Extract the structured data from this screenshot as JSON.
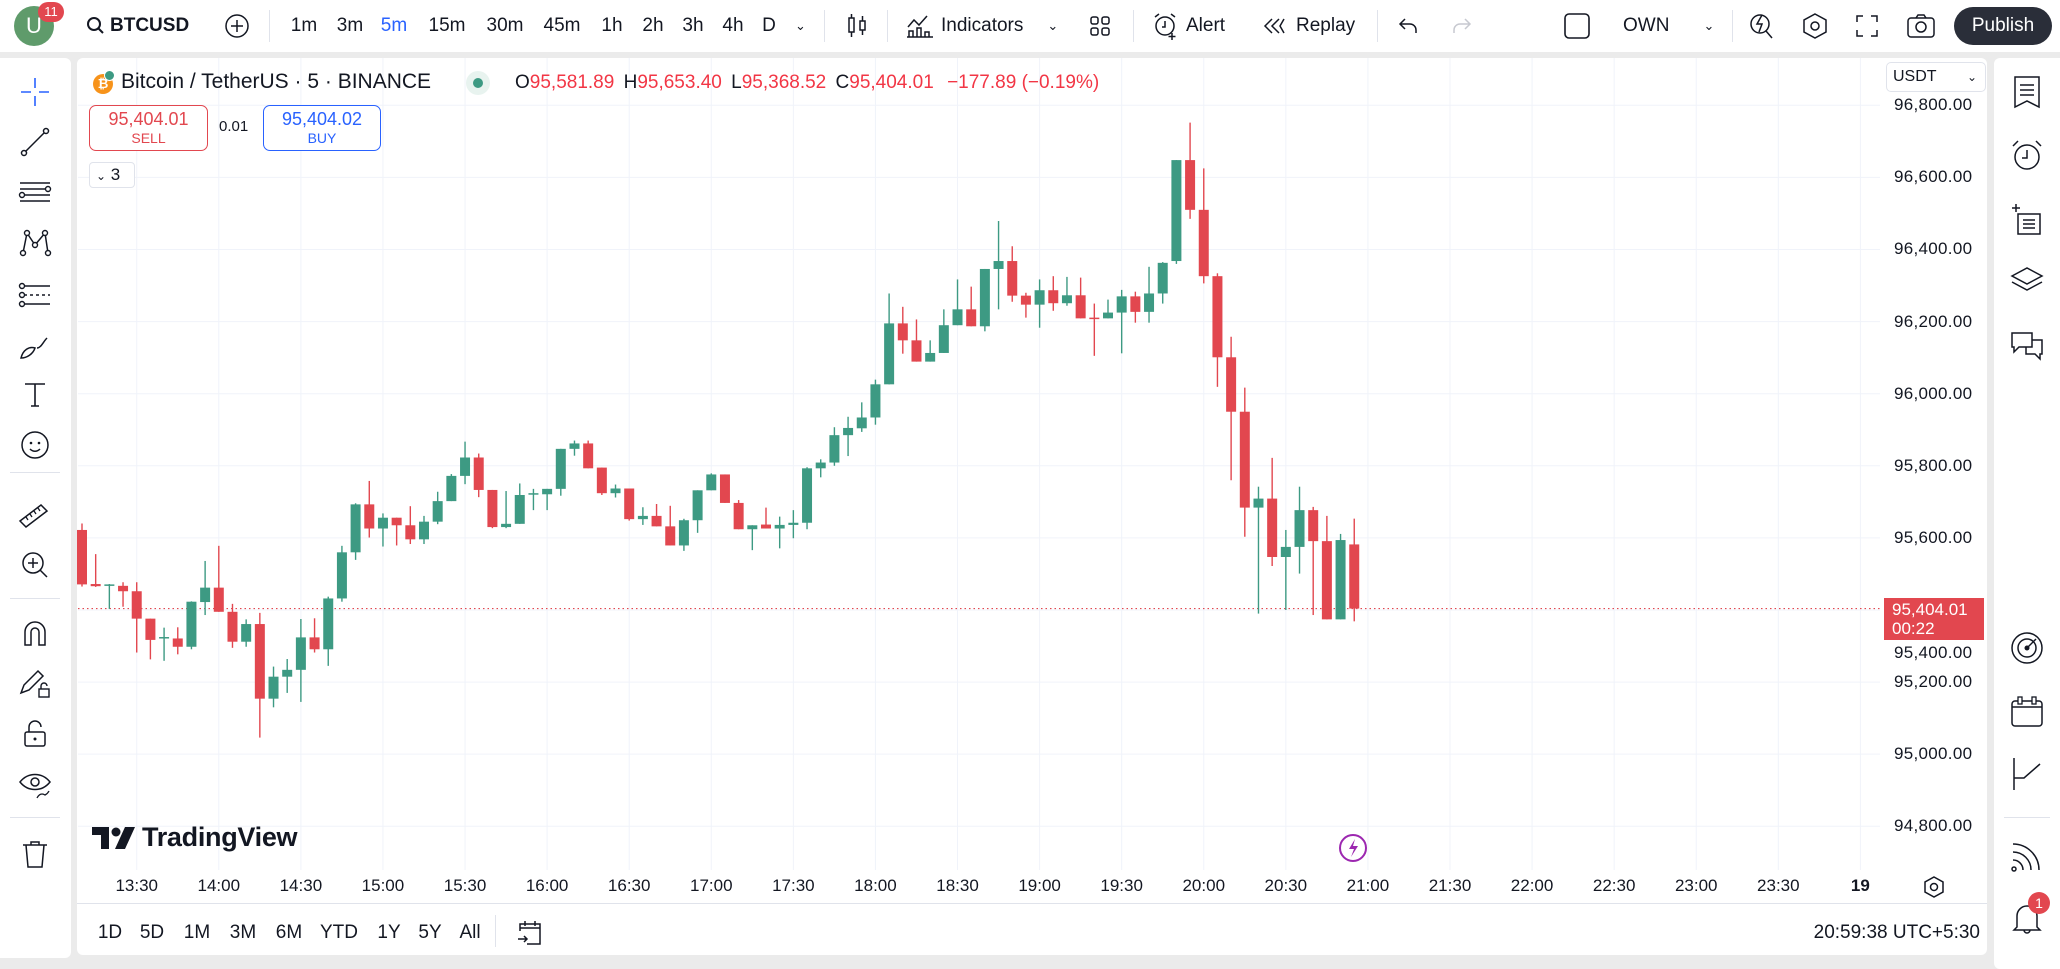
{
  "topbar": {
    "avatar_badge": "11",
    "symbol": "BTCUSD",
    "intervals": [
      "1m",
      "3m",
      "5m",
      "15m",
      "30m",
      "45m",
      "1h",
      "2h",
      "3h",
      "4h",
      "D"
    ],
    "active_interval": "5m",
    "indicators_label": "Indicators",
    "alert_label": "Alert",
    "replay_label": "Replay",
    "layout_label": "OWN",
    "publish_label": "Publish"
  },
  "legend": {
    "title": "Bitcoin / TetherUS · 5 · BINANCE",
    "o_label": "O",
    "o": "95,581.89",
    "h_label": "H",
    "h": "95,653.40",
    "l_label": "L",
    "l": "95,368.52",
    "c_label": "C",
    "c": "95,404.01",
    "change": "−177.89 (−0.19%)",
    "sell_price": "95,404.01",
    "sell_label": "SELL",
    "spread": "0.01",
    "buy_price": "95,404.02",
    "buy_label": "BUY",
    "collapse_count": "3"
  },
  "currency": "USDT",
  "last_price": {
    "value": "95,404.01",
    "countdown": "00:22"
  },
  "watermark": "TradingView",
  "bottombar": {
    "ranges": [
      "1D",
      "5D",
      "1M",
      "3M",
      "6M",
      "YTD",
      "1Y",
      "5Y",
      "All"
    ],
    "clock": "20:59:38 UTC+5:30"
  },
  "right_sidebar": {
    "notification_badge": "1"
  },
  "colors": {
    "up": "#3d9a83",
    "down": "#e2474f",
    "accent": "#2962ff",
    "event": "#9c27b0"
  },
  "chart_data": {
    "type": "candlestick",
    "interval": "5",
    "ylim": [
      94720,
      96860
    ],
    "yticks": [
      "96,800.00",
      "96,600.00",
      "96,400.00",
      "96,200.00",
      "96,000.00",
      "95,800.00",
      "95,600.00",
      "95,400.00",
      "95,200.00",
      "95,000.00",
      "94,800.00"
    ],
    "ytick_values": [
      96800,
      96600,
      96400,
      96200,
      96000,
      95800,
      95600,
      95400,
      95200,
      95000,
      94800
    ],
    "xticks": [
      "13:30",
      "14:00",
      "14:30",
      "15:00",
      "15:30",
      "16:00",
      "16:30",
      "17:00",
      "17:30",
      "18:00",
      "18:30",
      "19:00",
      "19:30",
      "20:00",
      "20:30",
      "21:00",
      "21:30",
      "22:00",
      "22:30",
      "23:00",
      "23:30",
      "19"
    ],
    "grid": true,
    "candle_fields": [
      "time",
      "open",
      "high",
      "low",
      "close"
    ],
    "candles": [
      [
        "13:10",
        95622,
        95640,
        95465,
        95471
      ],
      [
        "13:15",
        95472,
        95555,
        95464,
        95466
      ],
      [
        "13:20",
        95468,
        95472,
        95403,
        95471
      ],
      [
        "13:25",
        95467,
        95477,
        95409,
        95452
      ],
      [
        "13:30",
        95452,
        95477,
        95282,
        95376
      ],
      [
        "13:35",
        95376,
        95376,
        95263,
        95317
      ],
      [
        "13:40",
        95322,
        95351,
        95259,
        95325
      ],
      [
        "13:45",
        95321,
        95352,
        95277,
        95298
      ],
      [
        "13:50",
        95298,
        95424,
        95291,
        95423
      ],
      [
        "13:55",
        95422,
        95536,
        95386,
        95462
      ],
      [
        "14:00",
        95462,
        95578,
        95395,
        95395
      ],
      [
        "14:05",
        95395,
        95417,
        95295,
        95312
      ],
      [
        "14:10",
        95312,
        95374,
        95298,
        95361
      ],
      [
        "14:15",
        95361,
        95392,
        95046,
        95154
      ],
      [
        "14:20",
        95154,
        95243,
        95130,
        95215
      ],
      [
        "14:25",
        95215,
        95264,
        95170,
        95234
      ],
      [
        "14:30",
        95234,
        95375,
        95145,
        95324
      ],
      [
        "14:35",
        95324,
        95377,
        95282,
        95291
      ],
      [
        "14:40",
        95291,
        95437,
        95245,
        95432
      ],
      [
        "14:45",
        95432,
        95578,
        95423,
        95560
      ],
      [
        "14:50",
        95560,
        95696,
        95539,
        95693
      ],
      [
        "14:55",
        95693,
        95758,
        95601,
        95626
      ],
      [
        "15:00",
        95626,
        95668,
        95576,
        95656
      ],
      [
        "15:05",
        95656,
        95656,
        95579,
        95635
      ],
      [
        "15:10",
        95635,
        95688,
        95583,
        95596
      ],
      [
        "15:15",
        95596,
        95661,
        95583,
        95645
      ],
      [
        "15:20",
        95645,
        95728,
        95638,
        95702
      ],
      [
        "15:25",
        95702,
        95777,
        95702,
        95772
      ],
      [
        "15:30",
        95772,
        95867,
        95749,
        95823
      ],
      [
        "15:35",
        95823,
        95834,
        95713,
        95733
      ],
      [
        "15:40",
        95733,
        95733,
        95627,
        95630
      ],
      [
        "15:45",
        95630,
        95730,
        95627,
        95639
      ],
      [
        "15:50",
        95639,
        95751,
        95639,
        95719
      ],
      [
        "15:55",
        95721,
        95736,
        95677,
        95724
      ],
      [
        "16:00",
        95721,
        95736,
        95677,
        95736
      ],
      [
        "16:05",
        95736,
        95847,
        95717,
        95847
      ],
      [
        "16:10",
        95847,
        95870,
        95828,
        95862
      ],
      [
        "16:15",
        95862,
        95870,
        95793,
        95793
      ],
      [
        "16:20",
        95795,
        95795,
        95719,
        95724
      ],
      [
        "16:25",
        95724,
        95748,
        95712,
        95737
      ],
      [
        "16:30",
        95737,
        95737,
        95648,
        95652
      ],
      [
        "16:35",
        95652,
        95685,
        95636,
        95661
      ],
      [
        "16:40",
        95661,
        95694,
        95632,
        95632
      ],
      [
        "16:45",
        95632,
        95689,
        95579,
        95579
      ],
      [
        "16:50",
        95579,
        95653,
        95564,
        95649
      ],
      [
        "16:55",
        95649,
        95732,
        95614,
        95732
      ],
      [
        "17:00",
        95732,
        95779,
        95732,
        95776
      ],
      [
        "17:05",
        95776,
        95776,
        95697,
        95697
      ],
      [
        "17:10",
        95697,
        95705,
        95624,
        95624
      ],
      [
        "17:15",
        95624,
        95635,
        95566,
        95635
      ],
      [
        "17:20",
        95637,
        95684,
        95626,
        95626
      ],
      [
        "17:25",
        95626,
        95659,
        95571,
        95636
      ],
      [
        "17:30",
        95636,
        95677,
        95599,
        95642
      ],
      [
        "17:35",
        95642,
        95796,
        95624,
        95793
      ],
      [
        "17:40",
        95793,
        95818,
        95768,
        95809
      ],
      [
        "17:45",
        95809,
        95907,
        95800,
        95885
      ],
      [
        "17:50",
        95885,
        95936,
        95827,
        95905
      ],
      [
        "17:55",
        95904,
        95976,
        95894,
        95934
      ],
      [
        "18:00",
        95934,
        96039,
        95914,
        96026
      ],
      [
        "18:05",
        96026,
        96278,
        96026,
        96195
      ],
      [
        "18:10",
        96195,
        96241,
        96111,
        96148
      ],
      [
        "18:15",
        96148,
        96206,
        96089,
        96089
      ],
      [
        "18:20",
        96089,
        96148,
        96089,
        96113
      ],
      [
        "18:25",
        96113,
        96234,
        96113,
        96190
      ],
      [
        "18:30",
        96190,
        96317,
        96190,
        96234
      ],
      [
        "18:35",
        96234,
        96297,
        96187,
        96187
      ],
      [
        "18:40",
        96187,
        96346,
        96173,
        96346
      ],
      [
        "18:45",
        96346,
        96479,
        96234,
        96368
      ],
      [
        "18:50",
        96368,
        96409,
        96255,
        96272
      ],
      [
        "18:55",
        96272,
        96280,
        96211,
        96247
      ],
      [
        "19:00",
        96247,
        96317,
        96183,
        96287
      ],
      [
        "19:05",
        96287,
        96326,
        96230,
        96251
      ],
      [
        "19:10",
        96251,
        96324,
        96244,
        96273
      ],
      [
        "19:15",
        96273,
        96322,
        96209,
        96209
      ],
      [
        "19:20",
        96211,
        96250,
        96105,
        96209
      ],
      [
        "19:25",
        96209,
        96261,
        96209,
        96225
      ],
      [
        "19:30",
        96225,
        96288,
        96112,
        96270
      ],
      [
        "19:35",
        96270,
        96283,
        96197,
        96227
      ],
      [
        "19:40",
        96227,
        96352,
        96197,
        96278
      ],
      [
        "19:45",
        96278,
        96365,
        96250,
        96363
      ],
      [
        "19:50",
        96368,
        96648,
        96360,
        96648
      ],
      [
        "19:55",
        96648,
        96752,
        96485,
        96510
      ],
      [
        "20:00",
        96510,
        96625,
        96306,
        96326
      ],
      [
        "20:05",
        96326,
        96334,
        96019,
        96101
      ],
      [
        "20:10",
        96101,
        96158,
        95760,
        95950
      ],
      [
        "20:15",
        95950,
        96017,
        95603,
        95684
      ],
      [
        "20:20",
        95684,
        95742,
        95390,
        95709
      ],
      [
        "20:25",
        95709,
        95822,
        95522,
        95547
      ],
      [
        "20:30",
        95547,
        95622,
        95400,
        95575
      ],
      [
        "20:35",
        95575,
        95742,
        95501,
        95677
      ],
      [
        "20:40",
        95677,
        95686,
        95386,
        95591
      ],
      [
        "20:45",
        95591,
        95661,
        95374,
        95374
      ],
      [
        "20:50",
        95374,
        95611,
        95374,
        95594
      ],
      [
        "20:55",
        95581.89,
        95653.4,
        95368.52,
        95404.01
      ]
    ],
    "last_price_line": 95404.01
  }
}
